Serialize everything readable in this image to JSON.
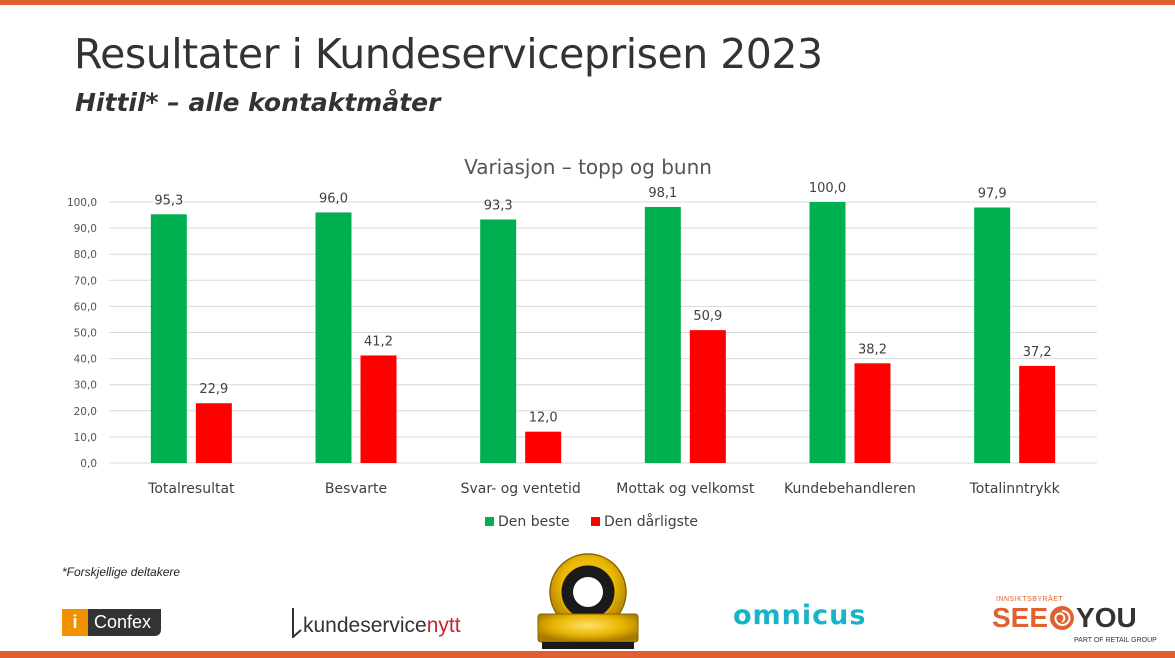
{
  "slide": {
    "title": "Resultater i Kundeserviceprisen 2023",
    "subtitle": "Hittil* – alle kontaktmåter",
    "footnote": "*Forskjellige deltakere"
  },
  "colors": {
    "accent": "#E0612F",
    "best": "#00B050",
    "worst": "#FF0000"
  },
  "chart_data": {
    "type": "bar",
    "title": "Variasjon – topp og bunn",
    "categories": [
      "Totalresultat",
      "Besvarte",
      "Svar- og ventetid",
      "Mottak og velkomst",
      "Kundebehandleren",
      "Totalinntrykk"
    ],
    "series": [
      {
        "name": "Den beste",
        "color": "#00B050",
        "values": [
          95.3,
          96.0,
          93.3,
          98.1,
          100.0,
          97.9
        ],
        "labels": [
          "95,3",
          "96,0",
          "93,3",
          "98,1",
          "100,0",
          "97,9"
        ]
      },
      {
        "name": "Den dårligste",
        "color": "#FF0000",
        "values": [
          22.9,
          41.2,
          12.0,
          50.9,
          38.2,
          37.2
        ],
        "labels": [
          "22,9",
          "41,2",
          "12,0",
          "50,9",
          "38,2",
          "37,2"
        ]
      }
    ],
    "ylim": [
      0,
      100
    ],
    "yticks": [
      "0,0",
      "10,0",
      "20,0",
      "30,0",
      "40,0",
      "50,0",
      "60,0",
      "70,0",
      "80,0",
      "90,0",
      "100,0"
    ],
    "grid": true,
    "legend": "bottom"
  },
  "logos": {
    "confex": {
      "icon_text": "i",
      "name": "Confex"
    },
    "kundeservicenytt": {
      "part1": "kundeservice",
      "part2": "nytt"
    },
    "seal": {
      "icon": "nbk-kundeserviceprisen-seal"
    },
    "omnicus": {
      "name": "omnicus"
    },
    "seeyou": {
      "top": "INNSIKTSBYRÅET",
      "see": "SEE",
      "you": "YOU",
      "tagline": "PART OF RETAIL GROUP"
    }
  }
}
